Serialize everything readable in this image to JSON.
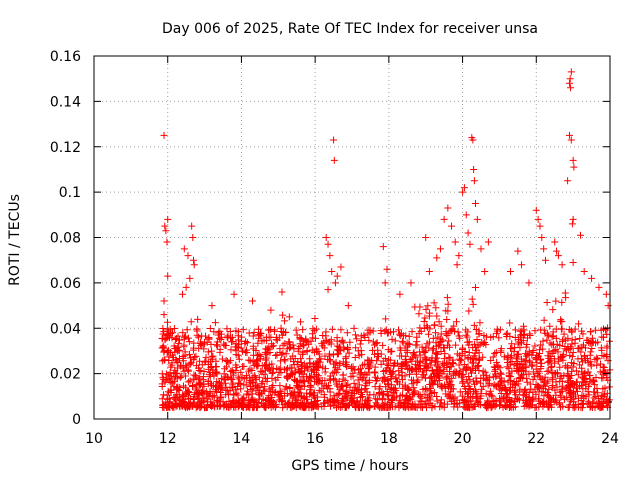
{
  "chart_data": {
    "type": "scatter",
    "title": "Day 006 of 2025, Rate Of TEC Index for receiver unsa",
    "xlabel": "GPS time / hours",
    "ylabel": "ROTI / TECUs",
    "xlim": [
      10,
      24
    ],
    "ylim": [
      0,
      0.16
    ],
    "x_ticks": [
      10,
      12,
      14,
      16,
      18,
      20,
      22,
      24
    ],
    "x_tick_labels": [
      "10",
      "12",
      "14",
      "16",
      "18",
      "20",
      "22",
      "24"
    ],
    "y_ticks": [
      0,
      0.02,
      0.04,
      0.06,
      0.08,
      0.1,
      0.12,
      0.14,
      0.16
    ],
    "y_tick_labels": [
      "0",
      "0.02",
      "0.04",
      "0.06",
      "0.08",
      "0.1",
      "0.12",
      "0.14",
      "0.16"
    ],
    "grid": true,
    "marker": "plus",
    "color": "#ff0000",
    "series": [
      {
        "name": "ROTI",
        "x_range": [
          11.85,
          24.0
        ],
        "base_band": [
          0.005,
          0.04
        ],
        "points": [
          {
            "x": 11.9,
            "y": 0.125
          },
          {
            "x": 11.92,
            "y": 0.085
          },
          {
            "x": 11.95,
            "y": 0.083
          },
          {
            "x": 12.0,
            "y": 0.088
          },
          {
            "x": 11.98,
            "y": 0.078
          },
          {
            "x": 12.0,
            "y": 0.063
          },
          {
            "x": 11.9,
            "y": 0.052
          },
          {
            "x": 11.9,
            "y": 0.046
          },
          {
            "x": 12.45,
            "y": 0.075
          },
          {
            "x": 12.55,
            "y": 0.072
          },
          {
            "x": 12.6,
            "y": 0.062
          },
          {
            "x": 12.65,
            "y": 0.085
          },
          {
            "x": 12.68,
            "y": 0.08
          },
          {
            "x": 12.7,
            "y": 0.07
          },
          {
            "x": 12.72,
            "y": 0.068
          },
          {
            "x": 12.5,
            "y": 0.058
          },
          {
            "x": 12.4,
            "y": 0.055
          },
          {
            "x": 13.8,
            "y": 0.055
          },
          {
            "x": 14.3,
            "y": 0.052
          },
          {
            "x": 14.8,
            "y": 0.048
          },
          {
            "x": 15.1,
            "y": 0.056
          },
          {
            "x": 15.3,
            "y": 0.045
          },
          {
            "x": 13.2,
            "y": 0.05
          },
          {
            "x": 16.3,
            "y": 0.08
          },
          {
            "x": 16.35,
            "y": 0.077
          },
          {
            "x": 16.4,
            "y": 0.072
          },
          {
            "x": 16.45,
            "y": 0.065
          },
          {
            "x": 16.5,
            "y": 0.123
          },
          {
            "x": 16.52,
            "y": 0.114
          },
          {
            "x": 16.55,
            "y": 0.06
          },
          {
            "x": 16.6,
            "y": 0.063
          },
          {
            "x": 16.7,
            "y": 0.067
          },
          {
            "x": 16.35,
            "y": 0.057
          },
          {
            "x": 16.9,
            "y": 0.05
          },
          {
            "x": 17.85,
            "y": 0.076
          },
          {
            "x": 17.9,
            "y": 0.06
          },
          {
            "x": 17.95,
            "y": 0.066
          },
          {
            "x": 18.3,
            "y": 0.055
          },
          {
            "x": 18.6,
            "y": 0.06
          },
          {
            "x": 19.0,
            "y": 0.08
          },
          {
            "x": 19.1,
            "y": 0.065
          },
          {
            "x": 19.3,
            "y": 0.071
          },
          {
            "x": 19.4,
            "y": 0.075
          },
          {
            "x": 19.5,
            "y": 0.088
          },
          {
            "x": 19.6,
            "y": 0.093
          },
          {
            "x": 19.7,
            "y": 0.085
          },
          {
            "x": 19.8,
            "y": 0.078
          },
          {
            "x": 19.9,
            "y": 0.072
          },
          {
            "x": 20.0,
            "y": 0.1
          },
          {
            "x": 20.05,
            "y": 0.102
          },
          {
            "x": 20.1,
            "y": 0.09
          },
          {
            "x": 20.15,
            "y": 0.082
          },
          {
            "x": 20.2,
            "y": 0.077
          },
          {
            "x": 20.25,
            "y": 0.124
          },
          {
            "x": 20.28,
            "y": 0.123
          },
          {
            "x": 20.3,
            "y": 0.11
          },
          {
            "x": 20.32,
            "y": 0.105
          },
          {
            "x": 20.35,
            "y": 0.095
          },
          {
            "x": 20.4,
            "y": 0.088
          },
          {
            "x": 20.5,
            "y": 0.075
          },
          {
            "x": 20.6,
            "y": 0.065
          },
          {
            "x": 20.7,
            "y": 0.078
          },
          {
            "x": 19.85,
            "y": 0.068
          },
          {
            "x": 21.3,
            "y": 0.065
          },
          {
            "x": 21.5,
            "y": 0.074
          },
          {
            "x": 21.6,
            "y": 0.068
          },
          {
            "x": 21.8,
            "y": 0.06
          },
          {
            "x": 22.0,
            "y": 0.092
          },
          {
            "x": 22.05,
            "y": 0.088
          },
          {
            "x": 22.1,
            "y": 0.085
          },
          {
            "x": 22.15,
            "y": 0.08
          },
          {
            "x": 22.2,
            "y": 0.075
          },
          {
            "x": 22.25,
            "y": 0.07
          },
          {
            "x": 22.5,
            "y": 0.078
          },
          {
            "x": 22.55,
            "y": 0.074
          },
          {
            "x": 22.6,
            "y": 0.072
          },
          {
            "x": 22.7,
            "y": 0.068
          },
          {
            "x": 22.85,
            "y": 0.105
          },
          {
            "x": 22.9,
            "y": 0.148
          },
          {
            "x": 22.92,
            "y": 0.15
          },
          {
            "x": 22.95,
            "y": 0.153
          },
          {
            "x": 22.93,
            "y": 0.146
          },
          {
            "x": 22.9,
            "y": 0.125
          },
          {
            "x": 22.95,
            "y": 0.123
          },
          {
            "x": 23.0,
            "y": 0.114
          },
          {
            "x": 23.02,
            "y": 0.111
          },
          {
            "x": 23.0,
            "y": 0.088
          },
          {
            "x": 22.98,
            "y": 0.086
          },
          {
            "x": 23.0,
            "y": 0.069
          },
          {
            "x": 23.2,
            "y": 0.081
          },
          {
            "x": 23.3,
            "y": 0.065
          },
          {
            "x": 23.5,
            "y": 0.062
          },
          {
            "x": 23.7,
            "y": 0.058
          },
          {
            "x": 23.9,
            "y": 0.055
          },
          {
            "x": 23.95,
            "y": 0.05
          }
        ]
      }
    ]
  }
}
